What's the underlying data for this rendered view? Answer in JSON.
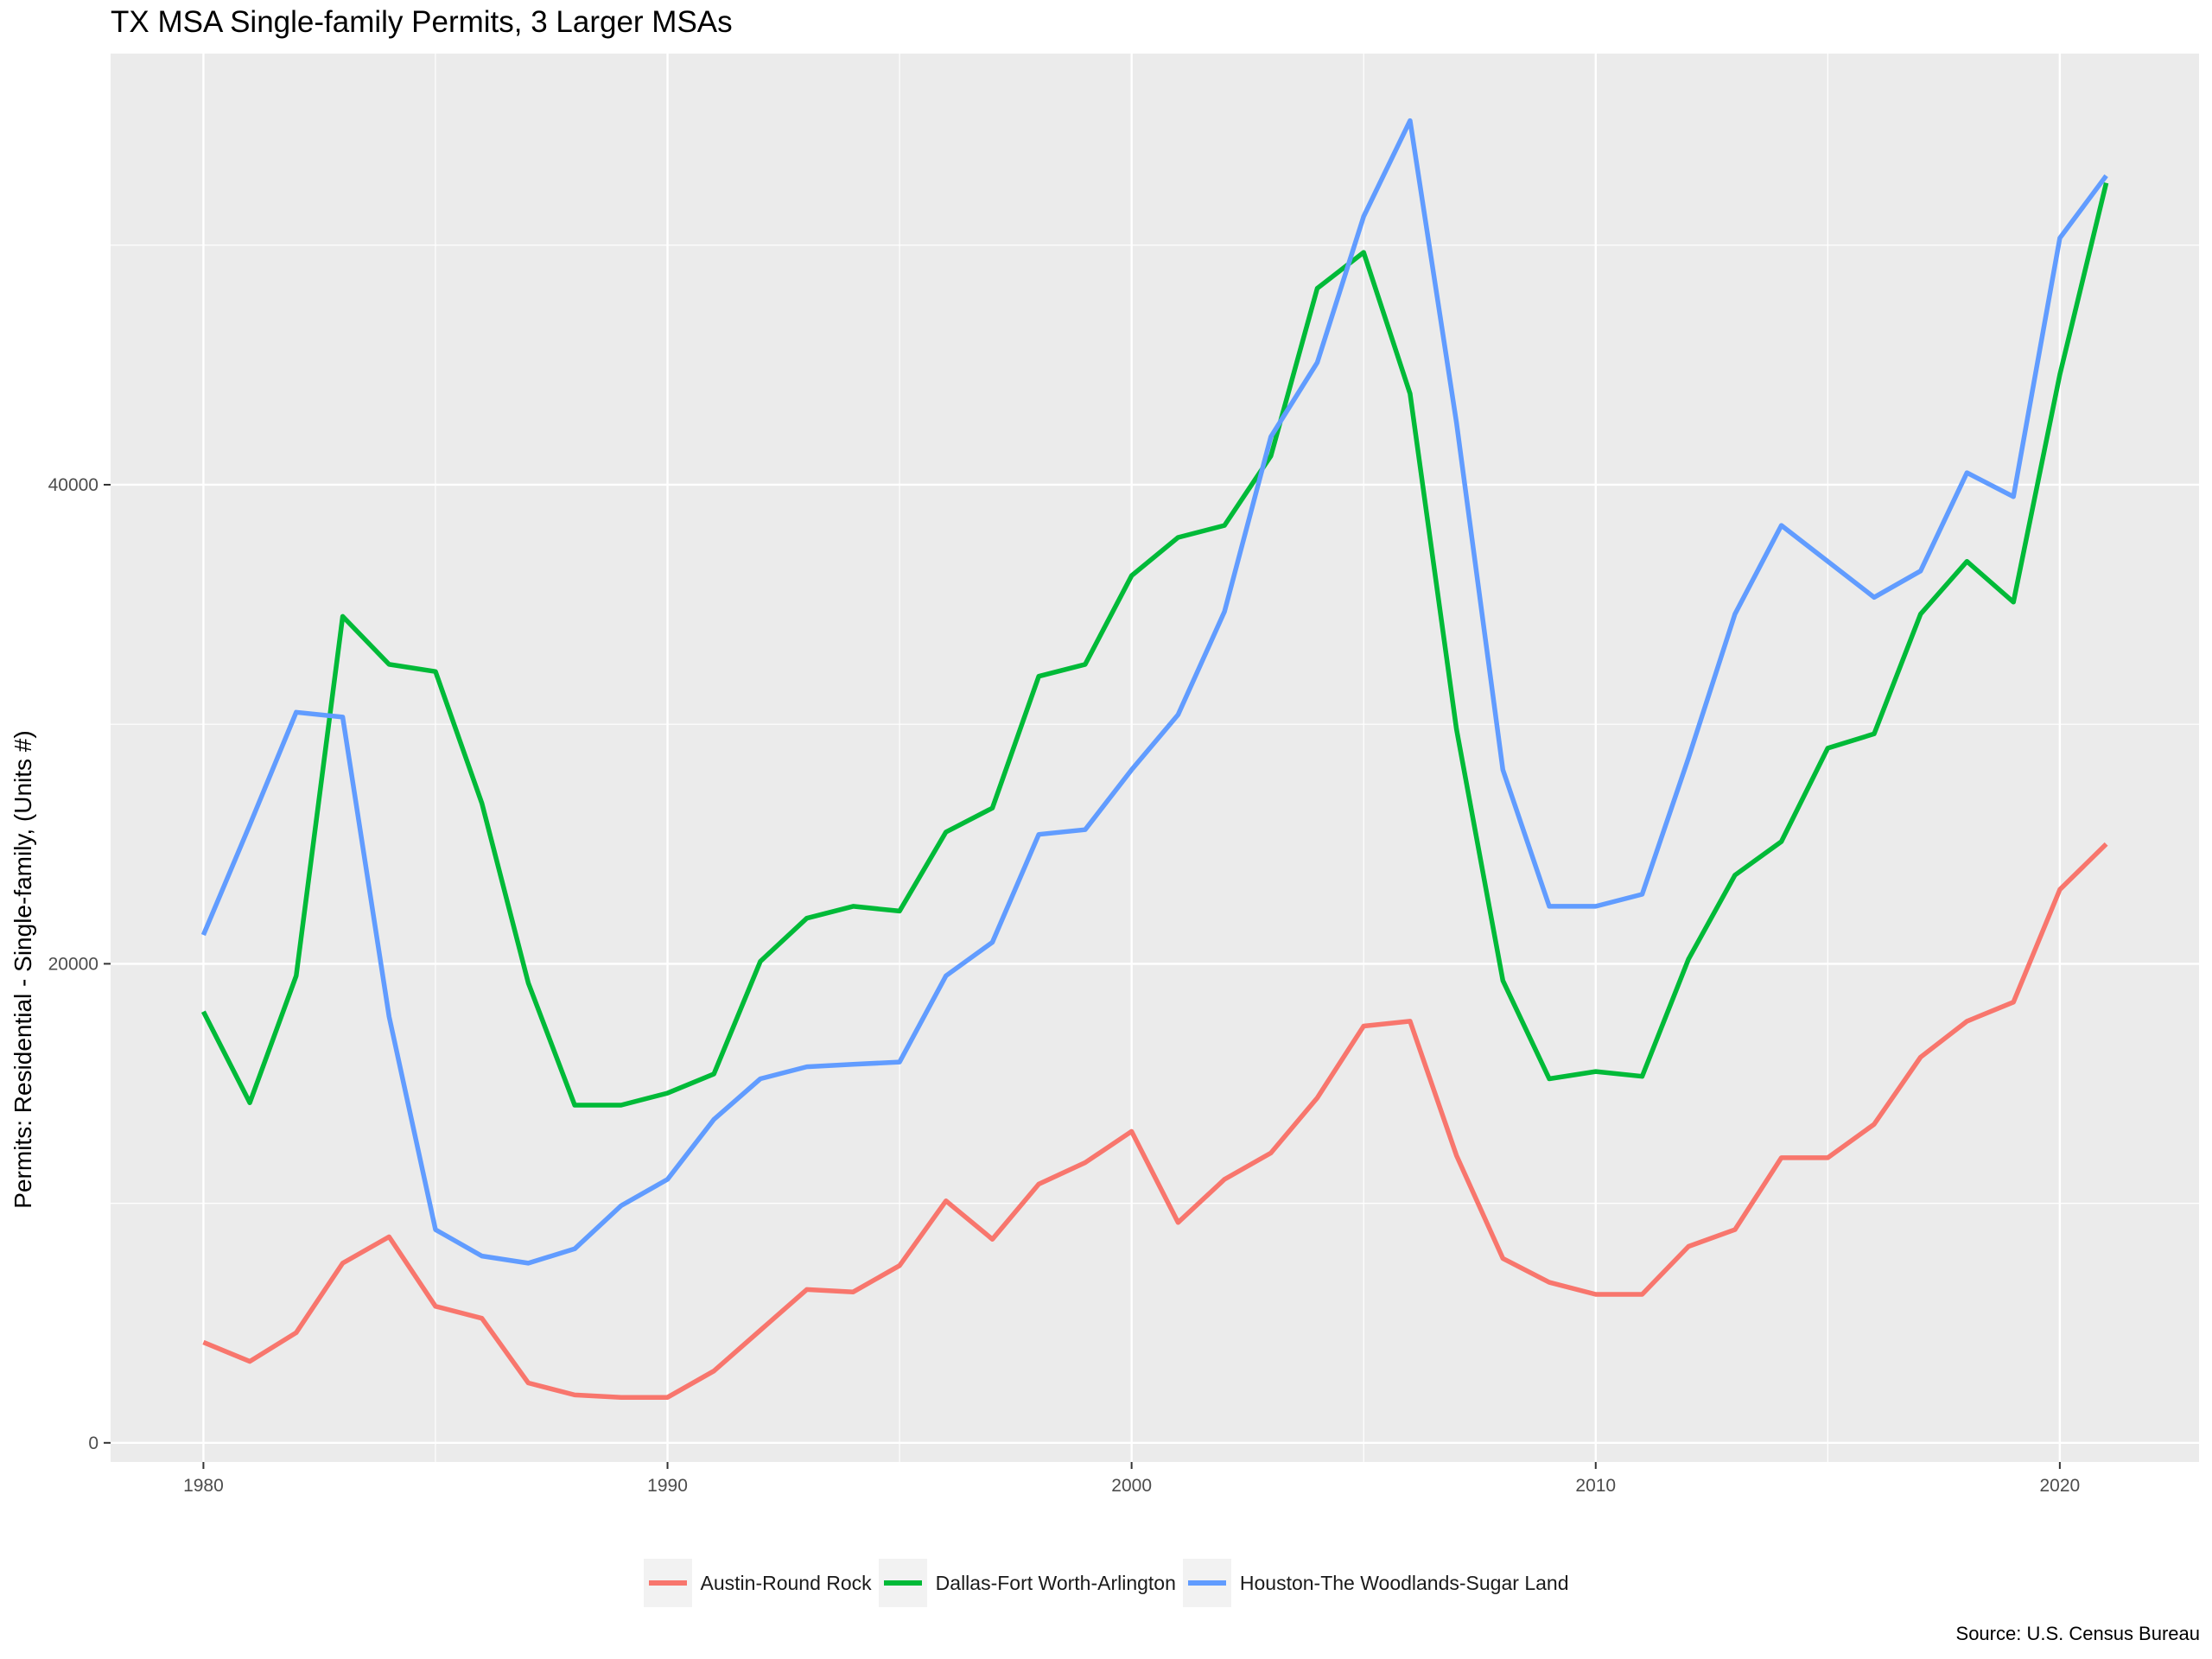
{
  "chart_data": {
    "type": "line",
    "title": "TX MSA Single-family Permits, 3 Larger MSAs",
    "xlabel": "",
    "ylabel": "Permits: Residential - Single-family, (Units #)",
    "caption": "Source: U.S. Census Bureau",
    "xlim": [
      1978,
      2023
    ],
    "ylim": [
      -800,
      58000
    ],
    "x_ticks": [
      1980,
      1990,
      2000,
      2010,
      2020
    ],
    "y_ticks": [
      0,
      20000,
      40000
    ],
    "grid": true,
    "legend_position": "bottom",
    "x": [
      1980,
      1981,
      1982,
      1983,
      1984,
      1985,
      1986,
      1987,
      1988,
      1989,
      1990,
      1991,
      1992,
      1993,
      1994,
      1995,
      1996,
      1997,
      1998,
      1999,
      2000,
      2001,
      2002,
      2003,
      2004,
      2005,
      2006,
      2007,
      2008,
      2009,
      2010,
      2011,
      2012,
      2013,
      2014,
      2015,
      2016,
      2017,
      2018,
      2019,
      2020,
      2021
    ],
    "series": [
      {
        "name": "Austin-Round Rock",
        "color": "#f8766d",
        "values": [
          4200,
          3400,
          4600,
          7500,
          8600,
          5700,
          5200,
          2500,
          2000,
          1900,
          1900,
          3000,
          4700,
          6400,
          6300,
          7400,
          10100,
          8500,
          10800,
          11700,
          13000,
          9200,
          11000,
          12100,
          14400,
          17400,
          17600,
          12000,
          7700,
          6700,
          6200,
          6200,
          8200,
          8900,
          11900,
          11900,
          13300,
          16100,
          17600,
          18400,
          23100,
          25000
        ]
      },
      {
        "name": "Dallas-Fort Worth-Arlington",
        "color": "#00ba38",
        "values": [
          18000,
          14200,
          19500,
          34500,
          32500,
          32200,
          26700,
          19200,
          14100,
          14100,
          14600,
          15400,
          20100,
          21900,
          22400,
          22200,
          25500,
          26500,
          32000,
          32500,
          36200,
          37800,
          38300,
          41200,
          48200,
          49700,
          43800,
          29800,
          19300,
          15200,
          15500,
          15300,
          20200,
          23700,
          25100,
          29000,
          29600,
          34600,
          36800,
          35100,
          44600,
          52600
        ]
      },
      {
        "name": "Houston-The Woodlands-Sugar Land",
        "color": "#619cff",
        "values": [
          21200,
          25800,
          30500,
          30300,
          17800,
          8900,
          7800,
          7500,
          8100,
          9900,
          11000,
          13500,
          15200,
          15700,
          15800,
          15900,
          19500,
          20900,
          25400,
          25600,
          28100,
          30400,
          34700,
          42000,
          45100,
          51200,
          55200,
          42600,
          28100,
          22400,
          22400,
          22900,
          28600,
          34600,
          38300,
          36800,
          35300,
          36400,
          40500,
          39500,
          50300,
          52900
        ]
      }
    ]
  }
}
